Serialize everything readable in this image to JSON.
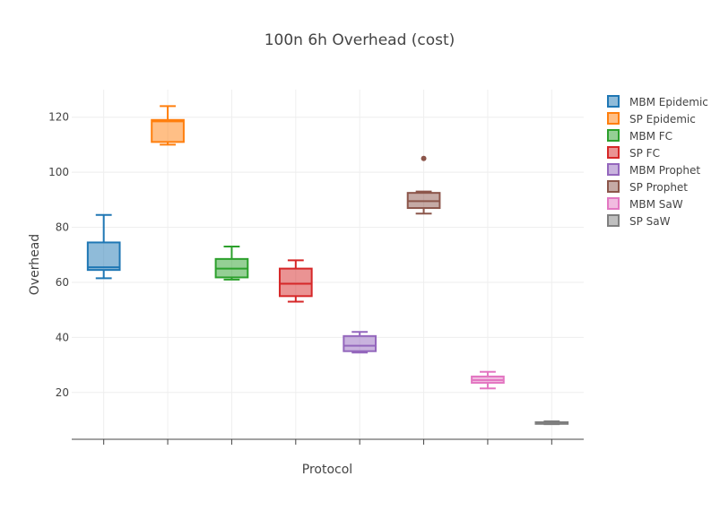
{
  "chart_data": {
    "type": "box",
    "title": "100n 6h Overhead (cost)",
    "xlabel": "Protocol",
    "ylabel": "Overhead",
    "ylim": [
      3,
      130
    ],
    "yticks": [
      20,
      40,
      60,
      80,
      100,
      120
    ],
    "grid": true,
    "legend_position": "top-right",
    "series": [
      {
        "name": "MBM Epidemic",
        "color": "#1f77b4",
        "min": 61.5,
        "q1": 64.5,
        "median": 65.5,
        "q3": 74.5,
        "max": 84.5,
        "outliers": []
      },
      {
        "name": "SP Epidemic",
        "color": "#ff7f0e",
        "min": 110,
        "q1": 111,
        "median": 118.5,
        "q3": 119,
        "max": 124,
        "outliers": []
      },
      {
        "name": "MBM FC",
        "color": "#2ca02c",
        "min": 61,
        "q1": 61.8,
        "median": 65,
        "q3": 68.5,
        "max": 73,
        "outliers": []
      },
      {
        "name": "SP FC",
        "color": "#d62728",
        "min": 53,
        "q1": 55,
        "median": 59.5,
        "q3": 65,
        "max": 68,
        "outliers": []
      },
      {
        "name": "MBM Prophet",
        "color": "#9467bd",
        "min": 34.5,
        "q1": 35,
        "median": 37,
        "q3": 40.5,
        "max": 42,
        "outliers": []
      },
      {
        "name": "SP Prophet",
        "color": "#8c564b",
        "min": 85,
        "q1": 87,
        "median": 89.5,
        "q3": 92.5,
        "max": 93,
        "outliers": [
          105
        ]
      },
      {
        "name": "MBM SaW",
        "color": "#e377c2",
        "min": 21.5,
        "q1": 23.5,
        "median": 24.5,
        "q3": 25.8,
        "max": 27.5,
        "outliers": []
      },
      {
        "name": "SP SaW",
        "color": "#7f7f7f",
        "min": 8.5,
        "q1": 8.6,
        "median": 8.8,
        "q3": 9.2,
        "max": 9.5,
        "outliers": []
      }
    ]
  }
}
